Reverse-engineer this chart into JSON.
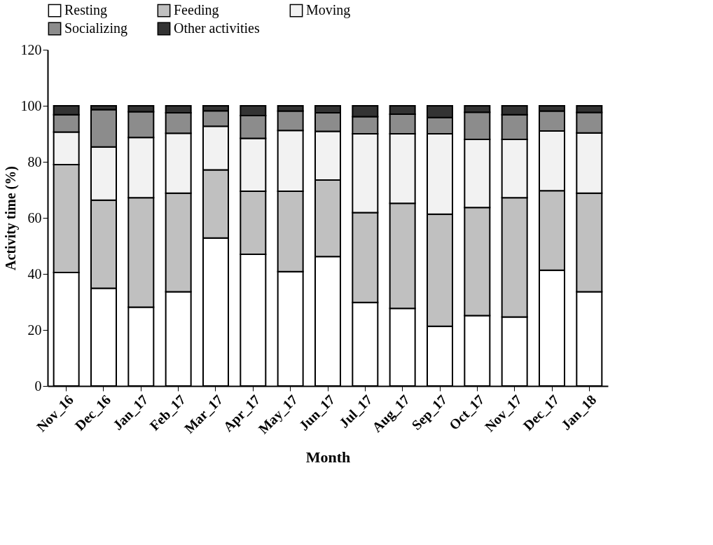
{
  "chart_data": {
    "type": "bar",
    "stacked": true,
    "xlabel": "Month",
    "ylabel": "Activity time (%)",
    "categories": [
      "Nov_16",
      "Dec_16",
      "Jan_17",
      "Feb_17",
      "Mar_17",
      "Apr_17",
      "May_17",
      "Jun_17",
      "Jul_17",
      "Aug_17",
      "Sep_17",
      "Oct_17",
      "Nov_17",
      "Dec_17",
      "Jan_18"
    ],
    "series": [
      {
        "name": "Resting",
        "color": "#ffffff",
        "values": [
          40.5,
          34.9,
          28.1,
          33.6,
          52.8,
          47.0,
          40.8,
          46.2,
          29.8,
          27.7,
          21.3,
          25.1,
          24.6,
          41.3,
          33.6
        ]
      },
      {
        "name": "Feeding",
        "color": "#c0c0c0",
        "values": [
          38.5,
          31.4,
          39.1,
          35.2,
          24.3,
          22.5,
          28.7,
          27.3,
          32.1,
          37.5,
          40.0,
          38.6,
          42.6,
          28.4,
          35.2
        ]
      },
      {
        "name": "Moving",
        "color": "#f2f2f2",
        "values": [
          11.6,
          19.0,
          21.5,
          21.4,
          15.6,
          18.9,
          21.7,
          17.4,
          28.1,
          24.8,
          28.7,
          24.3,
          20.8,
          21.3,
          21.5
        ]
      },
      {
        "name": "Socializing",
        "color": "#8c8c8c",
        "values": [
          6.2,
          13.3,
          9.2,
          7.3,
          5.5,
          8.1,
          6.9,
          6.6,
          6.1,
          7.0,
          5.8,
          9.7,
          8.8,
          7.1,
          7.3
        ]
      },
      {
        "name": "Other activities",
        "color": "#333333",
        "values": [
          3.2,
          1.4,
          2.1,
          2.5,
          1.8,
          3.5,
          1.9,
          2.5,
          3.9,
          3.0,
          4.2,
          2.3,
          3.2,
          1.9,
          2.4
        ]
      }
    ],
    "ylim": [
      0,
      120
    ],
    "yticks": [
      0,
      20,
      40,
      60,
      80,
      100,
      120
    ],
    "grid": false,
    "legend": "top"
  }
}
